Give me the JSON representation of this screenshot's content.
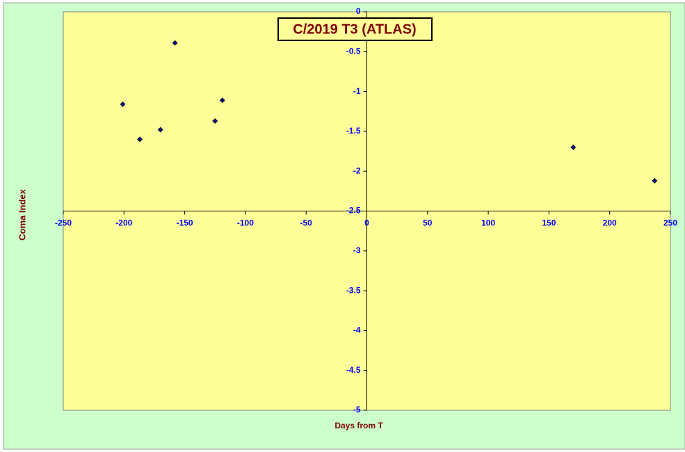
{
  "chart_data": {
    "type": "scatter",
    "title": "C/2019 T3 (ATLAS)",
    "x_label": "Days from T",
    "y_label": "Coma Index",
    "x": [
      -201,
      -187,
      -170,
      -158,
      -125,
      -119,
      170,
      237
    ],
    "series": [
      {
        "name": "Coma Index",
        "color": "#000080",
        "values": [
          -1.16,
          -1.6,
          -1.48,
          -0.39,
          -1.37,
          -1.11,
          -1.7,
          -2.12
        ]
      }
    ],
    "xlim": [
      -250,
      250
    ],
    "xticks": [
      -250,
      -200,
      -150,
      -100,
      -50,
      0,
      50,
      100,
      150,
      200,
      250
    ],
    "ylim": [
      -5,
      0
    ],
    "yticks": [
      0,
      -0.5,
      -1,
      -1.5,
      -2,
      -2.5,
      -3,
      -3.5,
      -4,
      -4.5,
      -5
    ],
    "x_axis_crosses_y": -2.5,
    "y_axis_crosses_x": 0,
    "grid": false
  }
}
